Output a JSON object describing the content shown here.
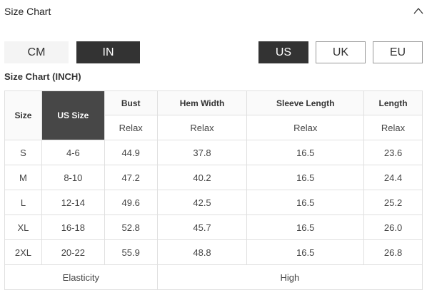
{
  "header": {
    "title": "Size Chart",
    "collapse_icon": "chevron-up-icon"
  },
  "units": [
    {
      "label": "CM",
      "selected": false
    },
    {
      "label": "IN",
      "selected": true
    }
  ],
  "regions": [
    {
      "label": "US",
      "selected": true
    },
    {
      "label": "UK",
      "selected": false
    },
    {
      "label": "EU",
      "selected": false
    }
  ],
  "subtitle": "Size Chart (INCH)",
  "table": {
    "headers": {
      "size": "Size",
      "us_size": "US Size",
      "bust": "Bust",
      "hem": "Hem Width",
      "sleeve": "Sleeve Length",
      "length": "Length",
      "fit": [
        "Relax",
        "Relax",
        "Relax",
        "Relax"
      ]
    },
    "rows": [
      [
        "S",
        "4-6",
        "44.9",
        "37.8",
        "16.5",
        "23.6"
      ],
      [
        "M",
        "8-10",
        "47.2",
        "40.2",
        "16.5",
        "24.4"
      ],
      [
        "L",
        "12-14",
        "49.6",
        "42.5",
        "16.5",
        "25.2"
      ],
      [
        "XL",
        "16-18",
        "52.8",
        "45.7",
        "16.5",
        "26.0"
      ],
      [
        "2XL",
        "20-22",
        "55.9",
        "48.8",
        "16.5",
        "26.8"
      ]
    ],
    "footer": {
      "label": "Elasticity",
      "value": "High"
    }
  }
}
